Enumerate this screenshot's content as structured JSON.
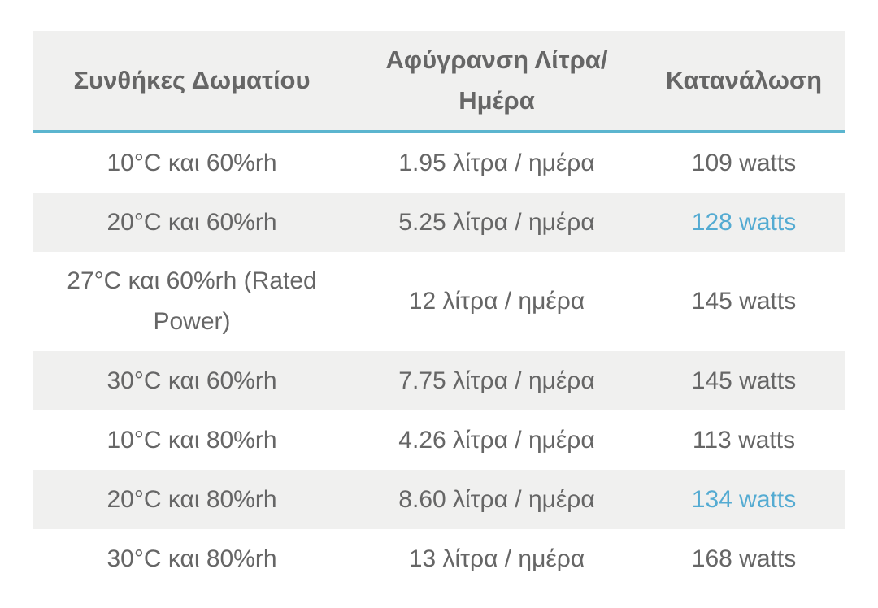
{
  "colors": {
    "text": "#666666",
    "accent_text": "#54abd2",
    "header_underline": "#5bb5cf",
    "stripe_bg": "#f0f0ef",
    "page_bg": "#ffffff"
  },
  "table": {
    "headers": {
      "conditions": "Συνθήκες Δωματίου",
      "dehumidification": "Αφύγρανση Λίτρα/ Ημέρα",
      "consumption": "Κατανάλωση"
    },
    "rows": [
      {
        "condition": "10°C και 60%rh",
        "liters": "1.95 λίτρα / ημέρα",
        "watts": "109 watts",
        "highlight": false,
        "striped": false
      },
      {
        "condition": "20°C και 60%rh",
        "liters": "5.25 λίτρα / ημέρα",
        "watts": "128 watts",
        "highlight": true,
        "striped": true
      },
      {
        "condition": "27°C και 60%rh (Rated Power)",
        "liters": "12 λίτρα / ημέρα",
        "watts": "145 watts",
        "highlight": false,
        "striped": false
      },
      {
        "condition": "30°C και 60%rh",
        "liters": "7.75 λίτρα / ημέρα",
        "watts": "145 watts",
        "highlight": false,
        "striped": true
      },
      {
        "condition": "10°C και 80%rh",
        "liters": "4.26 λίτρα / ημέρα",
        "watts": "113 watts",
        "highlight": false,
        "striped": false
      },
      {
        "condition": "20°C και 80%rh",
        "liters": "8.60 λίτρα / ημέρα",
        "watts": "134 watts",
        "highlight": true,
        "striped": true
      },
      {
        "condition": "30°C και 80%rh",
        "liters": "13 λίτρα / ημέρα",
        "watts": "168 watts",
        "highlight": false,
        "striped": false
      }
    ]
  },
  "chart_data": {
    "type": "table",
    "title": "",
    "columns": [
      "Συνθήκες Δωματίου",
      "Αφύγρανση Λίτρα/ Ημέρα",
      "Κατανάλωση"
    ],
    "rows": [
      [
        "10°C και 60%rh",
        "1.95 λίτρα / ημέρα",
        "109 watts"
      ],
      [
        "20°C και 60%rh",
        "5.25 λίτρα / ημέρα",
        "128 watts"
      ],
      [
        "27°C και 60%rh (Rated Power)",
        "12 λίτρα / ημέρα",
        "145 watts"
      ],
      [
        "30°C και 60%rh",
        "7.75 λίτρα / ημέρα",
        "145 watts"
      ],
      [
        "10°C και 80%rh",
        "4.26 λίτρα / ημέρα",
        "113 watts"
      ],
      [
        "20°C και 80%rh",
        "8.60 λίτρα / ημέρα",
        "134 watts"
      ],
      [
        "30°C και 80%rh",
        "13 λίτρα / ημέρα",
        "168 watts"
      ]
    ],
    "dehumidification_liters_per_day": [
      1.95,
      5.25,
      12,
      7.75,
      4.26,
      8.6,
      13
    ],
    "consumption_watts": [
      109,
      128,
      145,
      145,
      113,
      134,
      168
    ],
    "highlighted_watts_rows": [
      1,
      5
    ]
  }
}
